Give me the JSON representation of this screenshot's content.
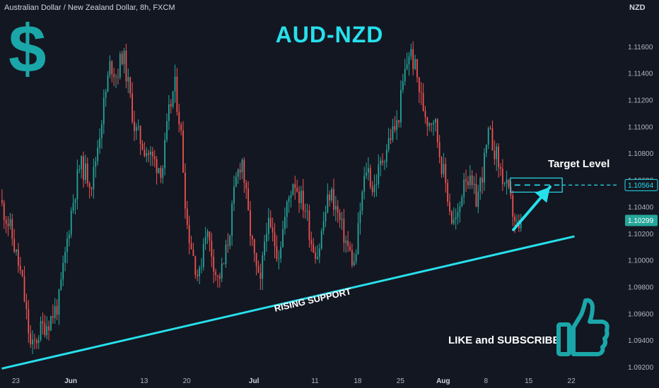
{
  "header": {
    "symbol_title": "Australian Dollar / New Zealand Dollar, 8h, FXCM",
    "currency": "NZD"
  },
  "annotations": {
    "main_title": "AUD-NZD",
    "dollar_glyph": "$",
    "target_label": "Target Level",
    "support_label": "RISING SUPPORT",
    "cta": "LIKE and SUBSCRIBE",
    "thumbs_up_icon": "thumbs-up-icon"
  },
  "colors": {
    "background": "#131722",
    "bull": "#26a69a",
    "bear": "#ef5350",
    "accent": "#26e0ec",
    "icon": "#1ba7a9"
  },
  "chart_data": {
    "type": "candlestick",
    "y_axis": {
      "ticks": [
        1.116,
        1.114,
        1.112,
        1.11,
        1.108,
        1.106,
        1.104,
        1.102,
        1.1,
        1.098,
        1.096,
        1.094,
        1.092
      ],
      "tick_labels": [
        "1.11600",
        "1.11400",
        "1.11200",
        "1.11000",
        "1.10800",
        "1.10600",
        "1.10400",
        "1.10200",
        "1.10000",
        "1.09800",
        "1.09600",
        "1.09400",
        "1.09200"
      ],
      "range": [
        1.0915,
        1.1195
      ]
    },
    "x_axis": {
      "ticks": [
        {
          "label": "23",
          "day": 0,
          "bold": false
        },
        {
          "label": "Jun",
          "day": 9,
          "bold": true
        },
        {
          "label": "13",
          "day": 21,
          "bold": false
        },
        {
          "label": "20",
          "day": 28,
          "bold": false
        },
        {
          "label": "Jul",
          "day": 39,
          "bold": true
        },
        {
          "label": "11",
          "day": 49,
          "bold": false
        },
        {
          "label": "18",
          "day": 56,
          "bold": false
        },
        {
          "label": "25",
          "day": 63,
          "bold": false
        },
        {
          "label": "Aug",
          "day": 70,
          "bold": true
        },
        {
          "label": "8",
          "day": 77,
          "bold": false
        },
        {
          "label": "15",
          "day": 84,
          "bold": false
        },
        {
          "label": "22",
          "day": 91,
          "bold": false
        }
      ],
      "range_days": [
        -2.6,
        98.4
      ]
    },
    "anchors": [
      [
        -2.6,
        1.1045
      ],
      [
        -1,
        1.1025
      ],
      [
        1,
        1.0985
      ],
      [
        2.5,
        1.0932
      ],
      [
        4,
        1.0948
      ],
      [
        5.5,
        1.0955
      ],
      [
        7,
        1.0968
      ],
      [
        9,
        1.1035
      ],
      [
        10.5,
        1.1072
      ],
      [
        12.5,
        1.1058
      ],
      [
        14,
        1.1105
      ],
      [
        15.5,
        1.1148
      ],
      [
        16.5,
        1.1138
      ],
      [
        17.5,
        1.1156
      ],
      [
        18.5,
        1.1128
      ],
      [
        19.5,
        1.1098
      ],
      [
        21,
        1.1085
      ],
      [
        22.5,
        1.1075
      ],
      [
        24,
        1.1068
      ],
      [
        25,
        1.1108
      ],
      [
        26,
        1.1132
      ],
      [
        27,
        1.1098
      ],
      [
        28,
        1.1028
      ],
      [
        29,
        1.1005
      ],
      [
        30,
        1.0985
      ],
      [
        31,
        1.1025
      ],
      [
        32,
        1.1008
      ],
      [
        33,
        1.0985
      ],
      [
        34,
        1.0995
      ],
      [
        35,
        1.1022
      ],
      [
        36,
        1.1058
      ],
      [
        37,
        1.1078
      ],
      [
        38,
        1.1035
      ],
      [
        39,
        1.1002
      ],
      [
        40,
        1.0978
      ],
      [
        41,
        1.1028
      ],
      [
        42,
        1.1018
      ],
      [
        43,
        1.1005
      ],
      [
        44.5,
        1.1042
      ],
      [
        45.5,
        1.1062
      ],
      [
        46.5,
        1.1048
      ],
      [
        47.5,
        1.1038
      ],
      [
        48.5,
        1.1012
      ],
      [
        49.5,
        1.1005
      ],
      [
        50.5,
        1.1032
      ],
      [
        51.5,
        1.1052
      ],
      [
        52.5,
        1.1038
      ],
      [
        53.5,
        1.1022
      ],
      [
        54.5,
        1.1008
      ],
      [
        55.5,
        1.0995
      ],
      [
        56.5,
        1.1042
      ],
      [
        57.5,
        1.1072
      ],
      [
        58.5,
        1.1052
      ],
      [
        59.5,
        1.1068
      ],
      [
        60.5,
        1.1082
      ],
      [
        61.5,
        1.1095
      ],
      [
        62.5,
        1.1102
      ],
      [
        63.5,
        1.1135
      ],
      [
        64.5,
        1.1158
      ],
      [
        65.5,
        1.1142
      ],
      [
        66.5,
        1.1118
      ],
      [
        67.5,
        1.1105
      ],
      [
        68.5,
        1.1108
      ],
      [
        69.5,
        1.1078
      ],
      [
        70.5,
        1.1055
      ],
      [
        71.5,
        1.1028
      ],
      [
        72.5,
        1.1032
      ],
      [
        73.5,
        1.1068
      ],
      [
        74.5,
        1.1055
      ],
      [
        75.5,
        1.1045
      ],
      [
        76.5,
        1.1068
      ],
      [
        77.5,
        1.1095
      ],
      [
        78.5,
        1.1082
      ],
      [
        79.5,
        1.1065
      ],
      [
        80.5,
        1.1052
      ],
      [
        81.5,
        1.1035
      ],
      [
        82.5,
        1.1018
      ],
      [
        83,
        1.1028
      ]
    ],
    "last_price": {
      "value": 1.10299,
      "label": "1.10299"
    },
    "target": {
      "value": 1.10564,
      "label": "1.10564",
      "day_start": 81,
      "day_end": 89.5
    },
    "support_line": {
      "from": [
        -2.3,
        1.0919
      ],
      "to": [
        91.5,
        1.1018
      ]
    },
    "arrow": {
      "from": [
        81.5,
        1.1023
      ],
      "to": [
        87.5,
        1.1055
      ]
    }
  }
}
